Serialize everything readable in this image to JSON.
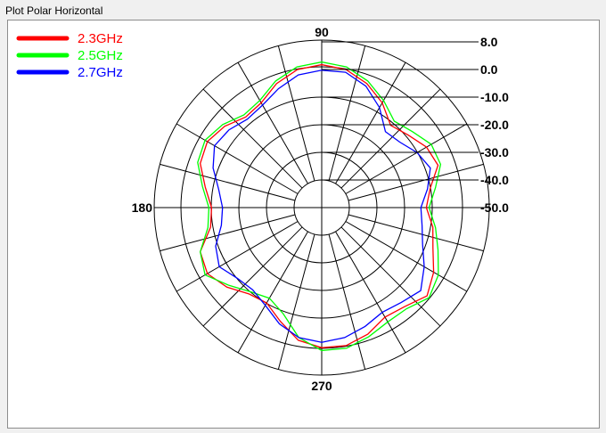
{
  "window_title": "Plot Polar Horizontal",
  "chart_data": {
    "type": "polar-line",
    "angle_labels": {
      "a90": "90",
      "a180": "180",
      "a270": "270"
    },
    "radial_min": -50,
    "radial_max": 8,
    "radial_ticks": [
      {
        "label": "8.0",
        "value": 8
      },
      {
        "label": "0.0",
        "value": 0
      },
      {
        "label": "-10.0",
        "value": -10
      },
      {
        "label": "-20.0",
        "value": -20
      },
      {
        "label": "-30.0",
        "value": -30
      },
      {
        "label": "-40.0",
        "value": -40
      },
      {
        "label": "-50.0",
        "value": -50
      }
    ],
    "angle_step_deg": 15,
    "series": [
      {
        "name": "2.3GHz",
        "color": "#ff0000",
        "points": [
          [
            0,
            -15
          ],
          [
            10,
            -13
          ],
          [
            20,
            -8
          ],
          [
            30,
            -9
          ],
          [
            40,
            -12
          ],
          [
            50,
            -14
          ],
          [
            60,
            -9
          ],
          [
            70,
            -5
          ],
          [
            80,
            -2
          ],
          [
            90,
            -1
          ],
          [
            100,
            -2
          ],
          [
            110,
            -5
          ],
          [
            120,
            -9
          ],
          [
            130,
            -10
          ],
          [
            140,
            -7
          ],
          [
            150,
            -5
          ],
          [
            160,
            -6
          ],
          [
            170,
            -10
          ],
          [
            180,
            -13
          ],
          [
            190,
            -12
          ],
          [
            200,
            -6
          ],
          [
            210,
            -5
          ],
          [
            220,
            -8
          ],
          [
            230,
            -12
          ],
          [
            240,
            -13
          ],
          [
            250,
            -9
          ],
          [
            260,
            -4
          ],
          [
            270,
            -2
          ],
          [
            280,
            -2
          ],
          [
            290,
            -4
          ],
          [
            300,
            -7
          ],
          [
            310,
            -6
          ],
          [
            320,
            -3
          ],
          [
            330,
            -6
          ],
          [
            340,
            -10
          ],
          [
            350,
            -12
          ]
        ]
      },
      {
        "name": "2.5GHz",
        "color": "#00ff00",
        "points": [
          [
            0,
            -14
          ],
          [
            10,
            -11
          ],
          [
            20,
            -7
          ],
          [
            30,
            -7
          ],
          [
            40,
            -10
          ],
          [
            50,
            -12
          ],
          [
            60,
            -8
          ],
          [
            70,
            -4
          ],
          [
            80,
            -1
          ],
          [
            90,
            0
          ],
          [
            100,
            -1
          ],
          [
            110,
            -4
          ],
          [
            120,
            -8
          ],
          [
            130,
            -9
          ],
          [
            140,
            -6
          ],
          [
            150,
            -4
          ],
          [
            160,
            -5
          ],
          [
            170,
            -9
          ],
          [
            180,
            -12
          ],
          [
            190,
            -11
          ],
          [
            200,
            -6
          ],
          [
            210,
            -4
          ],
          [
            220,
            -9
          ],
          [
            230,
            -13
          ],
          [
            240,
            -15
          ],
          [
            250,
            -12
          ],
          [
            260,
            -5
          ],
          [
            270,
            -1
          ],
          [
            280,
            -1
          ],
          [
            290,
            -3
          ],
          [
            300,
            -5
          ],
          [
            310,
            -5
          ],
          [
            320,
            -2
          ],
          [
            330,
            -4
          ],
          [
            340,
            -8
          ],
          [
            350,
            -11
          ]
        ]
      },
      {
        "name": "2.7GHz",
        "color": "#0000ff",
        "points": [
          [
            0,
            -17
          ],
          [
            10,
            -14
          ],
          [
            20,
            -11
          ],
          [
            30,
            -13
          ],
          [
            40,
            -16
          ],
          [
            50,
            -17
          ],
          [
            60,
            -11
          ],
          [
            70,
            -6
          ],
          [
            80,
            -3
          ],
          [
            90,
            -3
          ],
          [
            100,
            -4
          ],
          [
            110,
            -7
          ],
          [
            120,
            -10
          ],
          [
            130,
            -11
          ],
          [
            140,
            -9
          ],
          [
            150,
            -8
          ],
          [
            160,
            -11
          ],
          [
            170,
            -15
          ],
          [
            180,
            -17
          ],
          [
            190,
            -16
          ],
          [
            200,
            -12
          ],
          [
            210,
            -10
          ],
          [
            220,
            -13
          ],
          [
            230,
            -14
          ],
          [
            240,
            -12
          ],
          [
            250,
            -8
          ],
          [
            260,
            -5
          ],
          [
            270,
            -4
          ],
          [
            280,
            -5
          ],
          [
            290,
            -7
          ],
          [
            300,
            -9
          ],
          [
            310,
            -8
          ],
          [
            320,
            -6
          ],
          [
            330,
            -10
          ],
          [
            340,
            -14
          ],
          [
            350,
            -16
          ]
        ]
      }
    ]
  }
}
